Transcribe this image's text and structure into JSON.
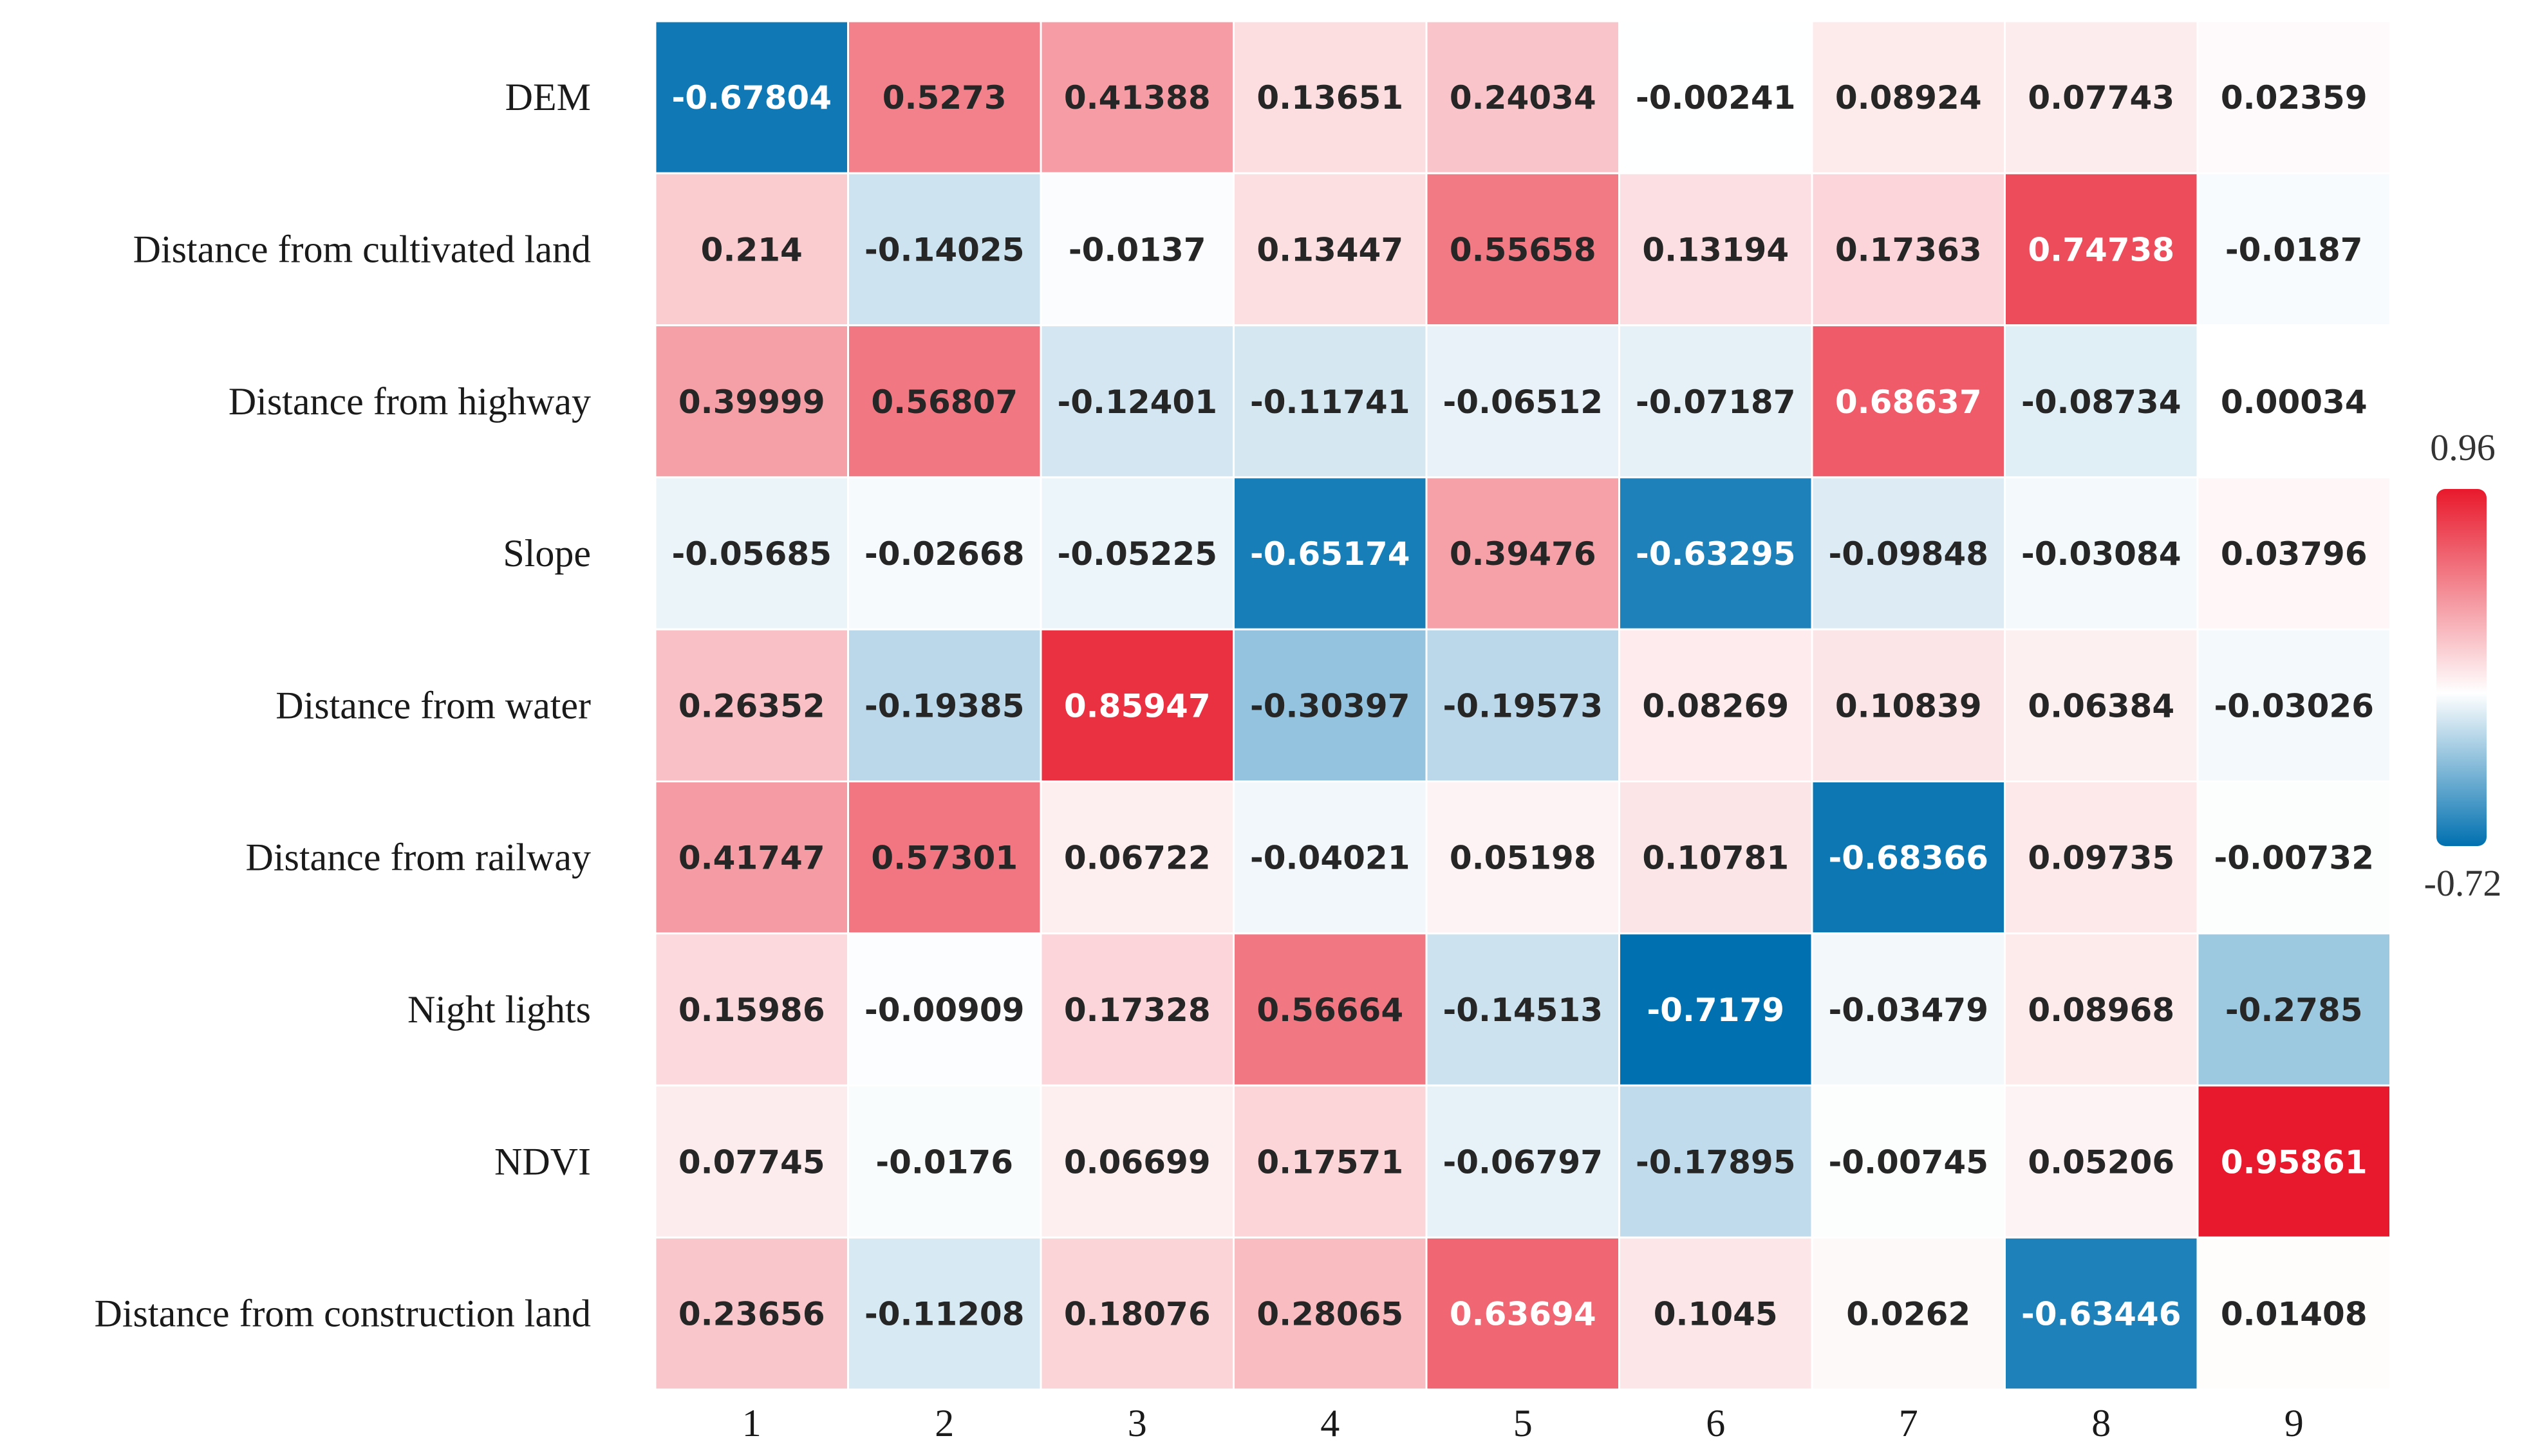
{
  "chart_data": {
    "type": "heatmap",
    "title": "",
    "xlabel": "",
    "ylabel": "",
    "rows": [
      "DEM",
      "Distance from cultivated land",
      "Distance from highway",
      "Slope",
      "Distance from water",
      "Distance from railway",
      "Night lights",
      "NDVI",
      "Distance from construction land"
    ],
    "columns": [
      "1",
      "2",
      "3",
      "4",
      "5",
      "6",
      "7",
      "8",
      "9"
    ],
    "values": [
      [
        -0.67804,
        0.5273,
        0.41388,
        0.13651,
        0.24034,
        -0.00241,
        0.08924,
        0.07743,
        0.02359
      ],
      [
        0.214,
        -0.14025,
        -0.0137,
        0.13447,
        0.55658,
        0.13194,
        0.17363,
        0.74738,
        -0.0187
      ],
      [
        0.39999,
        0.56807,
        -0.12401,
        -0.11741,
        -0.06512,
        -0.07187,
        0.68637,
        -0.08734,
        0.00034
      ],
      [
        -0.05685,
        -0.02668,
        -0.05225,
        -0.65174,
        0.39476,
        -0.63295,
        -0.09848,
        -0.03084,
        0.03796
      ],
      [
        0.26352,
        -0.19385,
        0.85947,
        -0.30397,
        -0.19573,
        0.08269,
        0.10839,
        0.06384,
        -0.03026
      ],
      [
        0.41747,
        0.57301,
        0.06722,
        -0.04021,
        0.05198,
        0.10781,
        -0.68366,
        0.09735,
        -0.00732
      ],
      [
        0.15986,
        -0.00909,
        0.17328,
        0.56664,
        -0.14513,
        -0.7179,
        -0.03479,
        0.08968,
        -0.2785
      ],
      [
        0.07745,
        -0.0176,
        0.06699,
        0.17571,
        -0.06797,
        -0.17895,
        -0.00745,
        0.05206,
        0.95861
      ],
      [
        0.23656,
        -0.11208,
        0.18076,
        0.28065,
        0.63694,
        0.1045,
        0.0262,
        -0.63446,
        0.01408
      ]
    ],
    "value_labels": [
      [
        "-0.67804",
        "0.5273",
        "0.41388",
        "0.13651",
        "0.24034",
        "-0.00241",
        "0.08924",
        "0.07743",
        "0.02359"
      ],
      [
        "0.214",
        "-0.14025",
        "-0.0137",
        "0.13447",
        "0.55658",
        "0.13194",
        "0.17363",
        "0.74738",
        "-0.0187"
      ],
      [
        "0.39999",
        "0.56807",
        "-0.12401",
        "-0.11741",
        "-0.06512",
        "-0.07187",
        "0.68637",
        "-0.08734",
        "0.00034"
      ],
      [
        "-0.05685",
        "-0.02668",
        "-0.05225",
        "-0.65174",
        "0.39476",
        "-0.63295",
        "-0.09848",
        "-0.03084",
        "0.03796"
      ],
      [
        "0.26352",
        "-0.19385",
        "0.85947",
        "-0.30397",
        "-0.19573",
        "0.08269",
        "0.10839",
        "0.06384",
        "-0.03026"
      ],
      [
        "0.41747",
        "0.57301",
        "0.06722",
        "-0.04021",
        "0.05198",
        "0.10781",
        "-0.68366",
        "0.09735",
        "-0.00732"
      ],
      [
        "0.15986",
        "-0.00909",
        "0.17328",
        "0.56664",
        "-0.14513",
        "-0.7179",
        "-0.03479",
        "0.08968",
        "-0.2785"
      ],
      [
        "0.07745",
        "-0.0176",
        "0.06699",
        "0.17571",
        "-0.06797",
        "-0.17895",
        "-0.00745",
        "0.05206",
        "0.95861"
      ],
      [
        "0.23656",
        "-0.11208",
        "0.18076",
        "0.28065",
        "0.63694",
        "0.1045",
        "0.0262",
        "-0.63446",
        "0.01408"
      ]
    ],
    "colorbar": {
      "min": -0.72,
      "max": 0.96,
      "min_label": "-0.72",
      "max_label": "0.96",
      "color_high": "#e8192c",
      "color_mid": "#ffffff",
      "color_low": "#0070b0"
    },
    "legend_position": "right"
  }
}
